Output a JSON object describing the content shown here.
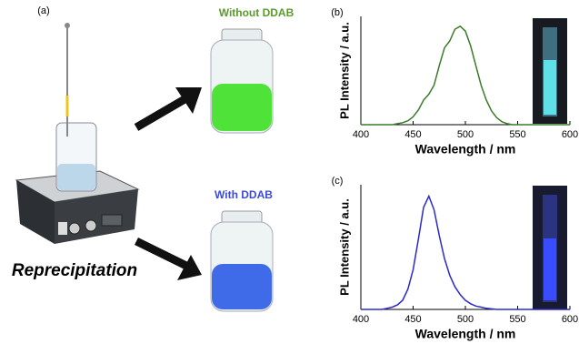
{
  "panel_a": {
    "label": "(a)",
    "top_jar_label": "Without DDAB",
    "bottom_jar_label": "With DDAB",
    "caption": "Reprecipitation"
  },
  "chart_data": [
    {
      "type": "line",
      "panel_label": "(b)",
      "xlabel": "Wavelength / nm",
      "ylabel": "PL Intensity / a.u.",
      "color": "#3a7a2a",
      "x": [
        400,
        430,
        435,
        440,
        445,
        450,
        455,
        460,
        465,
        470,
        475,
        480,
        485,
        490,
        495,
        500,
        505,
        510,
        515,
        520,
        525,
        530,
        535,
        540,
        545,
        550,
        600
      ],
      "values": [
        0,
        0,
        0.01,
        0.02,
        0.04,
        0.08,
        0.15,
        0.25,
        0.31,
        0.4,
        0.6,
        0.78,
        0.85,
        0.97,
        1.0,
        0.95,
        0.8,
        0.6,
        0.4,
        0.25,
        0.14,
        0.07,
        0.03,
        0.01,
        0,
        0,
        0
      ],
      "xlim": [
        400,
        600
      ],
      "xticks": [
        400,
        450,
        500,
        550,
        600
      ],
      "ylim": [
        0,
        1.1
      ]
    },
    {
      "type": "line",
      "panel_label": "(c)",
      "xlabel": "Wavelength / nm",
      "ylabel": "PL Intensity / a.u.",
      "color": "#2a2ac8",
      "x": [
        400,
        420,
        425,
        430,
        435,
        440,
        445,
        450,
        455,
        460,
        465,
        470,
        475,
        480,
        485,
        490,
        495,
        500,
        505,
        510,
        515,
        520,
        530,
        600
      ],
      "values": [
        0,
        0,
        0.01,
        0.02,
        0.04,
        0.08,
        0.18,
        0.35,
        0.62,
        0.9,
        1.0,
        0.88,
        0.65,
        0.45,
        0.3,
        0.2,
        0.13,
        0.08,
        0.05,
        0.03,
        0.02,
        0.01,
        0,
        0
      ],
      "xlim": [
        400,
        600
      ],
      "xticks": [
        400,
        450,
        500,
        550,
        600
      ],
      "ylim": [
        0,
        1.1
      ]
    }
  ]
}
